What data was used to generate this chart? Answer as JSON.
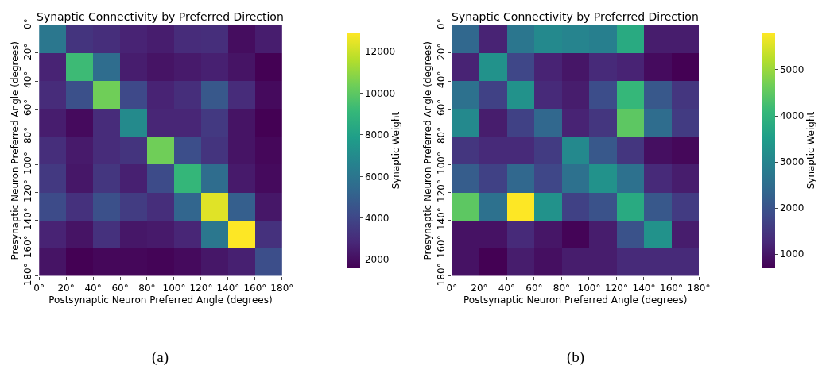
{
  "chart_data": [
    {
      "type": "heatmap",
      "title": "Synaptic Connectivity by Preferred Direction",
      "xlabel": "Postsynaptic Neuron Preferred Angle (degrees)",
      "ylabel": "Presynaptic Neuron Preferred Angle (degrees)",
      "clabel": "Synaptic Weight",
      "annotations": [
        "(a)"
      ],
      "cells": [
        [
          6100,
          3300,
          3100,
          2700,
          2500,
          3000,
          3100,
          2000,
          2500
        ],
        [
          2700,
          9300,
          5600,
          2500,
          2200,
          2400,
          2600,
          2200,
          1600
        ],
        [
          3000,
          4400,
          10400,
          4100,
          2700,
          3100,
          4700,
          3000,
          1900
        ],
        [
          2500,
          1900,
          3000,
          7000,
          2800,
          2800,
          3500,
          2200,
          1600
        ],
        [
          3100,
          2400,
          3000,
          3300,
          10400,
          4300,
          3300,
          2200,
          1800
        ],
        [
          3500,
          2300,
          3400,
          2600,
          4200,
          9100,
          5600,
          2400,
          1900
        ],
        [
          4200,
          3200,
          4400,
          3600,
          3100,
          5300,
          12400,
          5000,
          2300
        ],
        [
          2700,
          2200,
          3200,
          2300,
          2400,
          2800,
          6100,
          12900,
          3200
        ],
        [
          2200,
          1600,
          1800,
          1800,
          1700,
          1900,
          2300,
          2600,
          4300
        ]
      ],
      "xlim": [
        0,
        180
      ],
      "ylim": [
        180,
        0
      ],
      "xticks": [
        {
          "value": 0,
          "label": "0°"
        },
        {
          "value": 20,
          "label": "20°"
        },
        {
          "value": 40,
          "label": "40°"
        },
        {
          "value": 60,
          "label": "60°"
        },
        {
          "value": 80,
          "label": "80°"
        },
        {
          "value": 100,
          "label": "100°"
        },
        {
          "value": 120,
          "label": "120°"
        },
        {
          "value": 140,
          "label": "140°"
        },
        {
          "value": 160,
          "label": "160°"
        },
        {
          "value": 180,
          "label": "180°"
        }
      ],
      "yticks": [
        {
          "value": 0,
          "label": "0°"
        },
        {
          "value": 20,
          "label": "20°"
        },
        {
          "value": 40,
          "label": "40°"
        },
        {
          "value": 60,
          "label": "60°"
        },
        {
          "value": 80,
          "label": "80°"
        },
        {
          "value": 100,
          "label": "100°"
        },
        {
          "value": 120,
          "label": "120°"
        },
        {
          "value": 140,
          "label": "140°"
        },
        {
          "value": 160,
          "label": "160°"
        },
        {
          "value": 180,
          "label": "180°"
        }
      ],
      "clim": [
        1600,
        12900
      ],
      "cticks": [
        2000,
        4000,
        6000,
        8000,
        10000,
        12000
      ]
    },
    {
      "type": "heatmap",
      "title": "Synaptic Connectivity by Preferred Direction",
      "xlabel": "Postsynaptic Neuron Preferred Angle (degrees)",
      "ylabel": "Presynaptic Neuron Preferred Angle (degrees)",
      "clabel": "Synaptic Weight",
      "annotations": [
        "(b)"
      ],
      "cells": [
        [
          2400,
          1200,
          2700,
          3100,
          3000,
          2900,
          3800,
          1100,
          1100
        ],
        [
          1200,
          3300,
          1800,
          1200,
          1000,
          1300,
          1200,
          850,
          700
        ],
        [
          2600,
          1700,
          3300,
          1300,
          1100,
          1900,
          4100,
          2100,
          1500
        ],
        [
          3100,
          1100,
          1700,
          2400,
          1200,
          1500,
          4500,
          2500,
          1600
        ],
        [
          1500,
          1300,
          1300,
          1600,
          3100,
          2100,
          1500,
          900,
          800
        ],
        [
          2200,
          1700,
          2400,
          1800,
          2600,
          3300,
          2600,
          1300,
          1100
        ],
        [
          4500,
          2600,
          5800,
          3300,
          1700,
          2000,
          3800,
          2100,
          1600
        ],
        [
          950,
          950,
          1300,
          1000,
          750,
          1100,
          2000,
          3300,
          1100
        ],
        [
          950,
          700,
          1100,
          900,
          1100,
          1100,
          1300,
          1300,
          1300
        ]
      ],
      "xlim": [
        0,
        180
      ],
      "ylim": [
        180,
        0
      ],
      "xticks": [
        {
          "value": 0,
          "label": "0°"
        },
        {
          "value": 20,
          "label": "20°"
        },
        {
          "value": 40,
          "label": "40°"
        },
        {
          "value": 60,
          "label": "60°"
        },
        {
          "value": 80,
          "label": "80°"
        },
        {
          "value": 100,
          "label": "100°"
        },
        {
          "value": 120,
          "label": "120°"
        },
        {
          "value": 140,
          "label": "140°"
        },
        {
          "value": 160,
          "label": "160°"
        },
        {
          "value": 180,
          "label": "180°"
        }
      ],
      "yticks": [
        {
          "value": 0,
          "label": "0°"
        },
        {
          "value": 20,
          "label": "20°"
        },
        {
          "value": 40,
          "label": "40°"
        },
        {
          "value": 60,
          "label": "60°"
        },
        {
          "value": 80,
          "label": "80°"
        },
        {
          "value": 100,
          "label": "100°"
        },
        {
          "value": 120,
          "label": "120°"
        },
        {
          "value": 140,
          "label": "140°"
        },
        {
          "value": 160,
          "label": "160°"
        },
        {
          "value": 180,
          "label": "180°"
        }
      ],
      "clim": [
        700,
        5800
      ],
      "cticks": [
        1000,
        2000,
        3000,
        4000,
        5000
      ]
    }
  ]
}
